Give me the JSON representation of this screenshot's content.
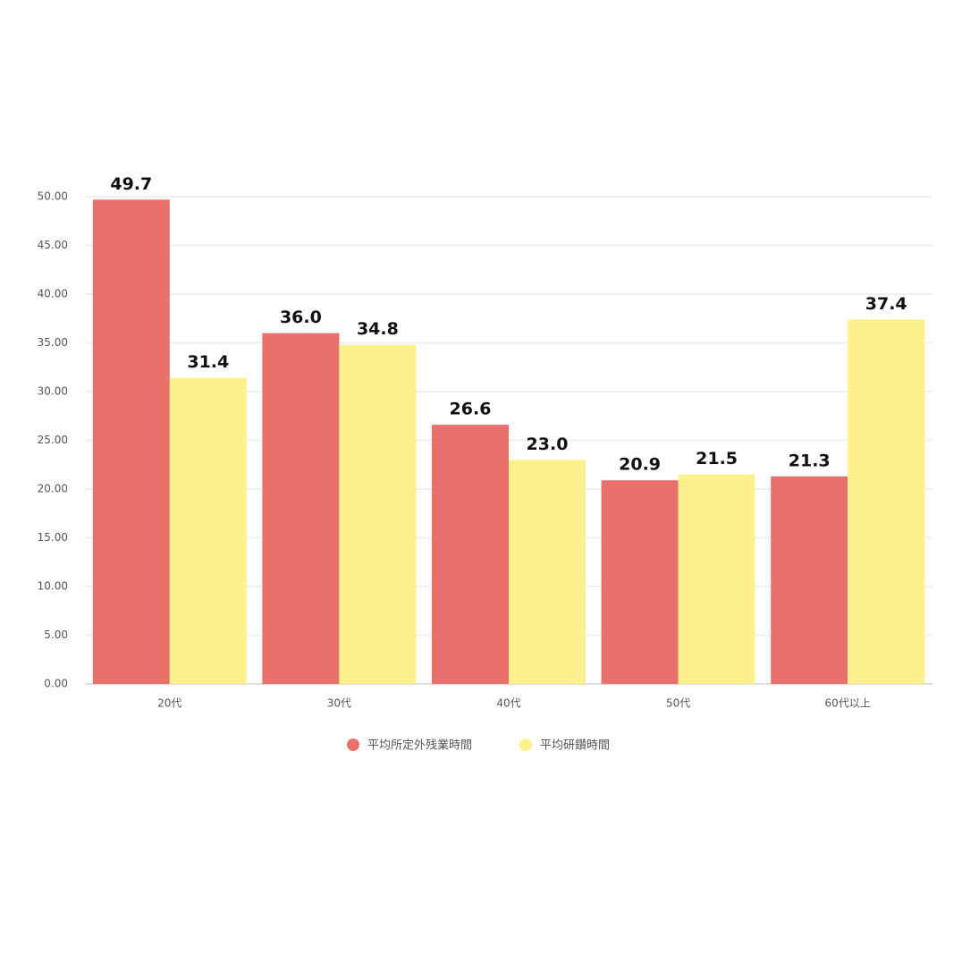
{
  "chart_data": {
    "type": "bar",
    "categories": [
      "20代",
      "30代",
      "40代",
      "50代",
      "60代以上"
    ],
    "series": [
      {
        "name": "平均所定外残業時間",
        "color": "#e8716c",
        "values": [
          49.7,
          36.0,
          26.6,
          20.9,
          21.3
        ],
        "value_labels": [
          "49.7",
          "36.0",
          "26.6",
          "20.9",
          "21.3"
        ]
      },
      {
        "name": "平均研鑽時間",
        "color": "#fdf18f",
        "values": [
          31.4,
          34.8,
          23.0,
          21.5,
          37.4
        ],
        "value_labels": [
          "31.4",
          "34.8",
          "23.0",
          "21.5",
          "37.4"
        ]
      }
    ],
    "ylim": [
      0,
      50
    ],
    "yticks": [
      {
        "value": 0,
        "label": "0.00"
      },
      {
        "value": 5,
        "label": "5.00"
      },
      {
        "value": 10,
        "label": "10.00"
      },
      {
        "value": 15,
        "label": "15.00"
      },
      {
        "value": 20,
        "label": "20.00"
      },
      {
        "value": 25,
        "label": "25.00"
      },
      {
        "value": 30,
        "label": "30.00"
      },
      {
        "value": 35,
        "label": "35.00"
      },
      {
        "value": 40,
        "label": "40.00"
      },
      {
        "value": 45,
        "label": "45.00"
      },
      {
        "value": 50,
        "label": "50.00"
      }
    ],
    "grid": true,
    "legend": "bottom"
  }
}
